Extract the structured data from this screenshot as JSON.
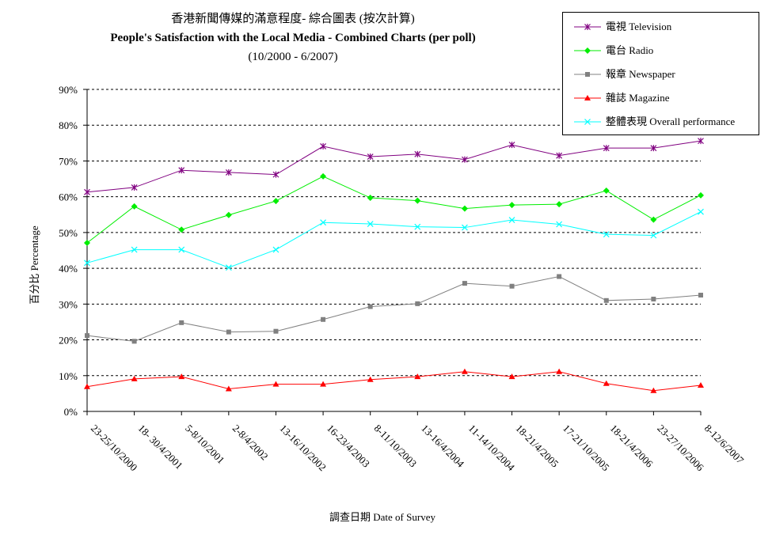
{
  "chart_data": {
    "type": "line",
    "title": "香港新聞傳媒的滿意程度- 綜合圖表 (按次計算)",
    "subtitle": "People's Satisfaction with the Local Media - Combined Charts (per poll)",
    "period": "(10/2000 - 6/2007)",
    "xlabel": "調查日期 Date of Survey",
    "ylabel": "百分比 Percentage",
    "ylim": [
      0,
      90
    ],
    "yticks": [
      "0%",
      "10%",
      "20%",
      "30%",
      "40%",
      "50%",
      "60%",
      "70%",
      "80%",
      "90%"
    ],
    "grid": true,
    "legend_position": "top-right",
    "categories": [
      "23-25/10/2000",
      "18- 30/4/2001",
      "5-8/10/2001",
      "2-8/4/2002",
      "13-16/10/2002",
      "16-23/4/2003",
      "8-11/10/2003",
      "13-16/4/2004",
      "11-14/10/2004",
      "18-21/4/2005",
      "17-21/10/2005",
      "18-21/4/2006",
      "23-27/10/2006",
      "8-12/6/2007"
    ],
    "series": [
      {
        "name": "電視 Television",
        "color": "#800080",
        "marker": "star",
        "values": [
          61.3,
          62.6,
          67.4,
          66.8,
          66.2,
          74.1,
          71.2,
          71.9,
          70.4,
          74.5,
          71.5,
          73.6,
          73.6,
          75.6
        ]
      },
      {
        "name": "電台 Radio",
        "color": "#00ee00",
        "marker": "diamond",
        "values": [
          47.1,
          57.3,
          50.8,
          54.9,
          58.8,
          65.7,
          59.7,
          58.9,
          56.7,
          57.7,
          57.9,
          61.7,
          53.6,
          60.4
        ]
      },
      {
        "name": "報章 Newspaper",
        "color": "#808080",
        "marker": "square",
        "values": [
          21.2,
          19.6,
          24.8,
          22.2,
          22.4,
          25.7,
          29.3,
          30.1,
          35.8,
          35.0,
          37.7,
          31.0,
          31.4,
          32.5
        ]
      },
      {
        "name": "雜誌 Magazine",
        "color": "#ff0000",
        "marker": "triangle",
        "values": [
          6.9,
          9.1,
          9.7,
          6.3,
          7.6,
          7.6,
          8.9,
          9.7,
          11.1,
          9.7,
          11.1,
          7.8,
          5.8,
          7.3
        ]
      },
      {
        "name": "整體表現 Overall performance",
        "color": "#00ffff",
        "marker": "x",
        "values": [
          41.5,
          45.2,
          45.2,
          40.2,
          45.2,
          52.8,
          52.4,
          51.6,
          51.4,
          53.5,
          52.3,
          49.5,
          49.2,
          55.8
        ]
      }
    ]
  }
}
